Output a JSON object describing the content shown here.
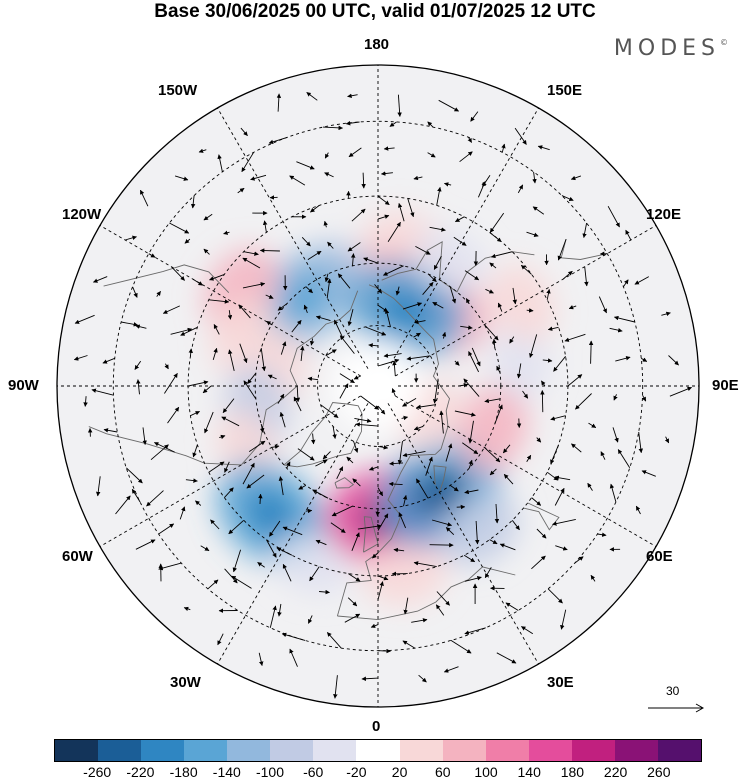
{
  "title": "Base 30/06/2025 00 UTC, valid 01/07/2025 12 UTC",
  "logo": "MODES",
  "logo_mark": "©",
  "longitude_labels": {
    "top": "180",
    "top_left": "150W",
    "top_right": "150E",
    "upper_left": "120W",
    "upper_right": "120E",
    "left": "90W",
    "right": "90E",
    "lower_left": "60W",
    "lower_right": "60E",
    "bottom_left": "30W",
    "bottom_right": "30E",
    "bottom": "0"
  },
  "reference_vector": "30",
  "colorbar": {
    "colors": [
      "#13345a",
      "#1b5e97",
      "#2f86c2",
      "#5aa5d5",
      "#92b8dd",
      "#c1cbe4",
      "#e1e2f0",
      "#ffffff",
      "#f8d8d8",
      "#f4b3c0",
      "#f07ea8",
      "#e44d9c",
      "#c1207f",
      "#8a1276",
      "#55106d"
    ],
    "labels": [
      "-260",
      "-220",
      "-180",
      "-140",
      "-100",
      "-60",
      "-20",
      "20",
      "60",
      "100",
      "140",
      "180",
      "220",
      "260"
    ]
  },
  "map": {
    "projection": "north polar stereographic",
    "anomaly_blobs": [
      {
        "lon": 170,
        "lat": 55,
        "value": 60
      },
      {
        "lon": 175,
        "lat": 65,
        "value": 80
      },
      {
        "lon": -155,
        "lat": 60,
        "value": -60
      },
      {
        "lon": -140,
        "lat": 62,
        "value": -120
      },
      {
        "lon": -125,
        "lat": 50,
        "value": 70
      },
      {
        "lon": -110,
        "lat": 55,
        "value": 50
      },
      {
        "lon": -100,
        "lat": 65,
        "value": 40
      },
      {
        "lon": -80,
        "lat": 60,
        "value": -60
      },
      {
        "lon": -65,
        "lat": 55,
        "value": 40
      },
      {
        "lon": -40,
        "lat": 50,
        "value": -140
      },
      {
        "lon": -20,
        "lat": 45,
        "value": -40
      },
      {
        "lon": 5,
        "lat": 58,
        "value": 160
      },
      {
        "lon": 8,
        "lat": 45,
        "value": 60
      },
      {
        "lon": 30,
        "lat": 60,
        "value": -160
      },
      {
        "lon": 35,
        "lat": 48,
        "value": -60
      },
      {
        "lon": 70,
        "lat": 60,
        "value": 70
      },
      {
        "lon": 100,
        "lat": 55,
        "value": -40
      },
      {
        "lon": 120,
        "lat": 50,
        "value": 50
      },
      {
        "lon": 140,
        "lat": 65,
        "value": 100
      },
      {
        "lon": 160,
        "lat": 70,
        "value": -140
      },
      {
        "lon": 150,
        "lat": 55,
        "value": -40
      },
      {
        "lon": 60,
        "lat": 75,
        "value": 40
      }
    ]
  }
}
